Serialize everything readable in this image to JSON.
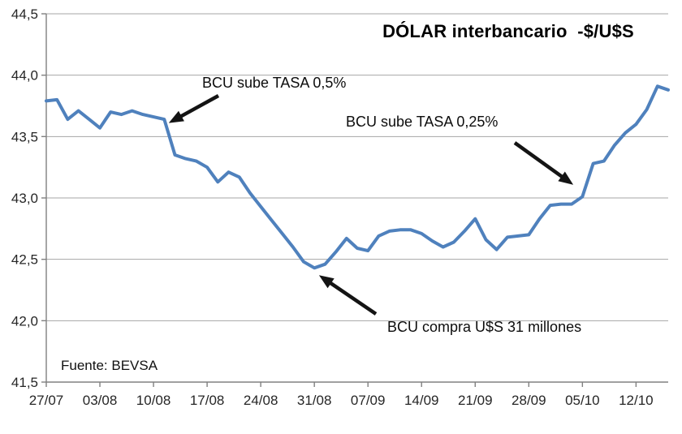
{
  "chart_data": {
    "type": "line",
    "title": "DÓLAR interbancario  -$/U$S",
    "source_note": "Fuente: BEVSA",
    "xlabel": "",
    "ylabel": "",
    "ylim": [
      41.5,
      44.5
    ],
    "grid": "horizontal",
    "line_color": "#4F81BD",
    "y_ticks": [
      {
        "label": "44,5",
        "value": 44.5
      },
      {
        "label": "44,0",
        "value": 44.0
      },
      {
        "label": "43,5",
        "value": 43.5
      },
      {
        "label": "43,0",
        "value": 43.0
      },
      {
        "label": "42,5",
        "value": 42.5
      },
      {
        "label": "42,0",
        "value": 42.0
      },
      {
        "label": "41,5",
        "value": 41.5
      }
    ],
    "x_tick_every": 5,
    "x_tick_labels": [
      "27/07",
      "03/08",
      "10/08",
      "17/08",
      "24/08",
      "31/08",
      "07/09",
      "14/09",
      "21/09",
      "28/09",
      "05/10",
      "12/10"
    ],
    "x": [
      "27/07",
      "28/07",
      "29/07",
      "30/07",
      "31/07",
      "03/08",
      "04/08",
      "05/08",
      "06/08",
      "07/08",
      "10/08",
      "11/08",
      "12/08",
      "13/08",
      "14/08",
      "17/08",
      "18/08",
      "19/08",
      "20/08",
      "21/08",
      "24/08",
      "25/08",
      "26/08",
      "27/08",
      "28/08",
      "31/08",
      "01/09",
      "02/09",
      "03/09",
      "04/09",
      "07/09",
      "08/09",
      "09/09",
      "10/09",
      "11/09",
      "14/09",
      "15/09",
      "16/09",
      "17/09",
      "18/09",
      "21/09",
      "22/09",
      "23/09",
      "24/09",
      "25/09",
      "28/09",
      "29/09",
      "30/09",
      "01/10",
      "02/10",
      "05/10",
      "06/10",
      "07/10",
      "08/10",
      "09/10",
      "12/10",
      "13/10",
      "14/10",
      "15/10"
    ],
    "series": [
      {
        "name": "Dólar interbancario $/U$S",
        "values": [
          43.79,
          43.8,
          43.64,
          43.71,
          43.64,
          43.57,
          43.7,
          43.68,
          43.71,
          43.68,
          43.66,
          43.64,
          43.35,
          43.32,
          43.3,
          43.25,
          43.13,
          43.21,
          43.17,
          43.04,
          42.93,
          42.82,
          42.71,
          42.6,
          42.48,
          42.43,
          42.46,
          42.56,
          42.67,
          42.59,
          42.57,
          42.69,
          42.73,
          42.74,
          42.74,
          42.71,
          42.65,
          42.6,
          42.64,
          42.73,
          42.83,
          42.66,
          42.58,
          42.68,
          42.69,
          42.7,
          42.83,
          42.94,
          42.95,
          42.95,
          43.01,
          43.28,
          43.3,
          43.43,
          43.53,
          43.6,
          43.72,
          43.91,
          43.88
        ]
      }
    ],
    "annotations": [
      {
        "text": "BCU sube TASA 0,5%",
        "arrow_from": [
          269,
          118
        ],
        "arrow_to": [
          209,
          151
        ]
      },
      {
        "text": "BCU sube TASA 0,25%",
        "arrow_from": [
          634,
          176
        ],
        "arrow_to": [
          705,
          227
        ]
      },
      {
        "text": "BCU compra U$S 31 millones",
        "arrow_from": [
          463,
          387
        ],
        "arrow_to": [
          394,
          340
        ]
      }
    ]
  }
}
